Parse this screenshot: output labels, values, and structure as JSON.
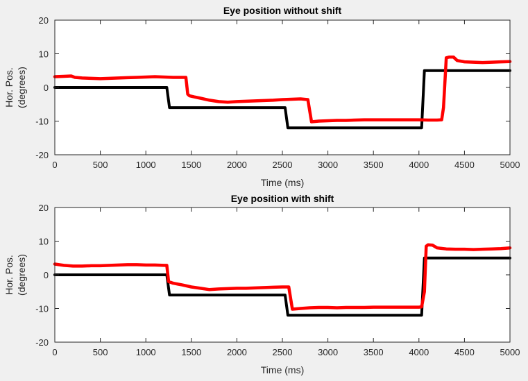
{
  "chart_data": [
    {
      "type": "line",
      "title": "Eye position without shift",
      "xlabel": "Time (ms)",
      "ylabel": [
        "Hor. Pos.",
        "(degrees)"
      ],
      "xlim": [
        0,
        5000
      ],
      "ylim": [
        -20,
        20
      ],
      "xticks": [
        0,
        500,
        1000,
        1500,
        2000,
        2500,
        3000,
        3500,
        4000,
        4500,
        5000
      ],
      "yticks": [
        -20,
        -10,
        0,
        10,
        20
      ],
      "grid": false,
      "series": [
        {
          "color": "#000000",
          "role": "target",
          "points": [
            [
              0,
              0
            ],
            [
              1230,
              0
            ],
            [
              1260,
              -6
            ],
            [
              2530,
              -6
            ],
            [
              2560,
              -12
            ],
            [
              4030,
              -12
            ],
            [
              4060,
              5
            ],
            [
              5000,
              5
            ]
          ]
        },
        {
          "color": "#ff0000",
          "role": "eye",
          "points": [
            [
              0,
              3.2
            ],
            [
              100,
              3.3
            ],
            [
              180,
              3.4
            ],
            [
              220,
              3
            ],
            [
              300,
              2.8
            ],
            [
              400,
              2.7
            ],
            [
              500,
              2.6
            ],
            [
              600,
              2.7
            ],
            [
              700,
              2.8
            ],
            [
              800,
              2.9
            ],
            [
              900,
              3
            ],
            [
              1000,
              3.1
            ],
            [
              1100,
              3.2
            ],
            [
              1200,
              3.1
            ],
            [
              1300,
              3
            ],
            [
              1400,
              3
            ],
            [
              1440,
              3
            ],
            [
              1460,
              -2
            ],
            [
              1480,
              -2.5
            ],
            [
              1530,
              -2.8
            ],
            [
              1600,
              -3.2
            ],
            [
              1700,
              -3.8
            ],
            [
              1800,
              -4.2
            ],
            [
              1900,
              -4.4
            ],
            [
              2000,
              -4.2
            ],
            [
              2100,
              -4.1
            ],
            [
              2200,
              -4
            ],
            [
              2300,
              -3.9
            ],
            [
              2400,
              -3.8
            ],
            [
              2500,
              -3.6
            ],
            [
              2600,
              -3.5
            ],
            [
              2700,
              -3.4
            ],
            [
              2780,
              -3.6
            ],
            [
              2820,
              -10.2
            ],
            [
              2900,
              -10
            ],
            [
              3000,
              -9.9
            ],
            [
              3100,
              -9.8
            ],
            [
              3200,
              -9.8
            ],
            [
              3300,
              -9.7
            ],
            [
              3400,
              -9.6
            ],
            [
              3500,
              -9.6
            ],
            [
              3600,
              -9.6
            ],
            [
              3700,
              -9.6
            ],
            [
              3800,
              -9.6
            ],
            [
              3900,
              -9.6
            ],
            [
              4000,
              -9.6
            ],
            [
              4100,
              -9.7
            ],
            [
              4200,
              -9.7
            ],
            [
              4250,
              -9.6
            ],
            [
              4270,
              -6
            ],
            [
              4300,
              8.8
            ],
            [
              4330,
              9
            ],
            [
              4380,
              9
            ],
            [
              4420,
              8
            ],
            [
              4500,
              7.6
            ],
            [
              4600,
              7.5
            ],
            [
              4700,
              7.4
            ],
            [
              4800,
              7.5
            ],
            [
              4900,
              7.6
            ],
            [
              5000,
              7.7
            ]
          ]
        }
      ]
    },
    {
      "type": "line",
      "title": "Eye position with shift",
      "xlabel": "Time (ms)",
      "ylabel": [
        "Hor. Pos.",
        "(degrees)"
      ],
      "xlim": [
        0,
        5000
      ],
      "ylim": [
        -20,
        20
      ],
      "xticks": [
        0,
        500,
        1000,
        1500,
        2000,
        2500,
        3000,
        3500,
        4000,
        4500,
        5000
      ],
      "yticks": [
        -20,
        -10,
        0,
        10,
        20
      ],
      "grid": false,
      "series": [
        {
          "color": "#000000",
          "role": "target",
          "points": [
            [
              0,
              0
            ],
            [
              1230,
              0
            ],
            [
              1260,
              -6
            ],
            [
              2530,
              -6
            ],
            [
              2560,
              -12
            ],
            [
              4030,
              -12
            ],
            [
              4060,
              5
            ],
            [
              5000,
              5
            ]
          ]
        },
        {
          "color": "#ff0000",
          "role": "eye",
          "points": [
            [
              0,
              3.2
            ],
            [
              100,
              2.8
            ],
            [
              200,
              2.6
            ],
            [
              300,
              2.6
            ],
            [
              400,
              2.7
            ],
            [
              500,
              2.7
            ],
            [
              600,
              2.8
            ],
            [
              700,
              2.9
            ],
            [
              800,
              3
            ],
            [
              900,
              3
            ],
            [
              1000,
              2.9
            ],
            [
              1100,
              2.9
            ],
            [
              1200,
              2.8
            ],
            [
              1230,
              2.8
            ],
            [
              1250,
              -2
            ],
            [
              1300,
              -2.5
            ],
            [
              1400,
              -3
            ],
            [
              1500,
              -3.6
            ],
            [
              1600,
              -4
            ],
            [
              1700,
              -4.4
            ],
            [
              1800,
              -4.2
            ],
            [
              1900,
              -4.1
            ],
            [
              2000,
              -4
            ],
            [
              2100,
              -4
            ],
            [
              2200,
              -3.9
            ],
            [
              2300,
              -3.8
            ],
            [
              2400,
              -3.7
            ],
            [
              2500,
              -3.6
            ],
            [
              2570,
              -3.6
            ],
            [
              2610,
              -10.2
            ],
            [
              2700,
              -10
            ],
            [
              2800,
              -9.8
            ],
            [
              2900,
              -9.7
            ],
            [
              3000,
              -9.7
            ],
            [
              3100,
              -9.8
            ],
            [
              3200,
              -9.7
            ],
            [
              3300,
              -9.7
            ],
            [
              3400,
              -9.7
            ],
            [
              3500,
              -9.6
            ],
            [
              3600,
              -9.6
            ],
            [
              3700,
              -9.6
            ],
            [
              3800,
              -9.6
            ],
            [
              3900,
              -9.6
            ],
            [
              4000,
              -9.6
            ],
            [
              4030,
              -9.5
            ],
            [
              4060,
              -5
            ],
            [
              4080,
              8.5
            ],
            [
              4100,
              8.9
            ],
            [
              4150,
              8.8
            ],
            [
              4200,
              8
            ],
            [
              4300,
              7.7
            ],
            [
              4400,
              7.6
            ],
            [
              4500,
              7.6
            ],
            [
              4600,
              7.5
            ],
            [
              4700,
              7.6
            ],
            [
              4800,
              7.7
            ],
            [
              4900,
              7.8
            ],
            [
              5000,
              8
            ]
          ]
        }
      ]
    }
  ]
}
